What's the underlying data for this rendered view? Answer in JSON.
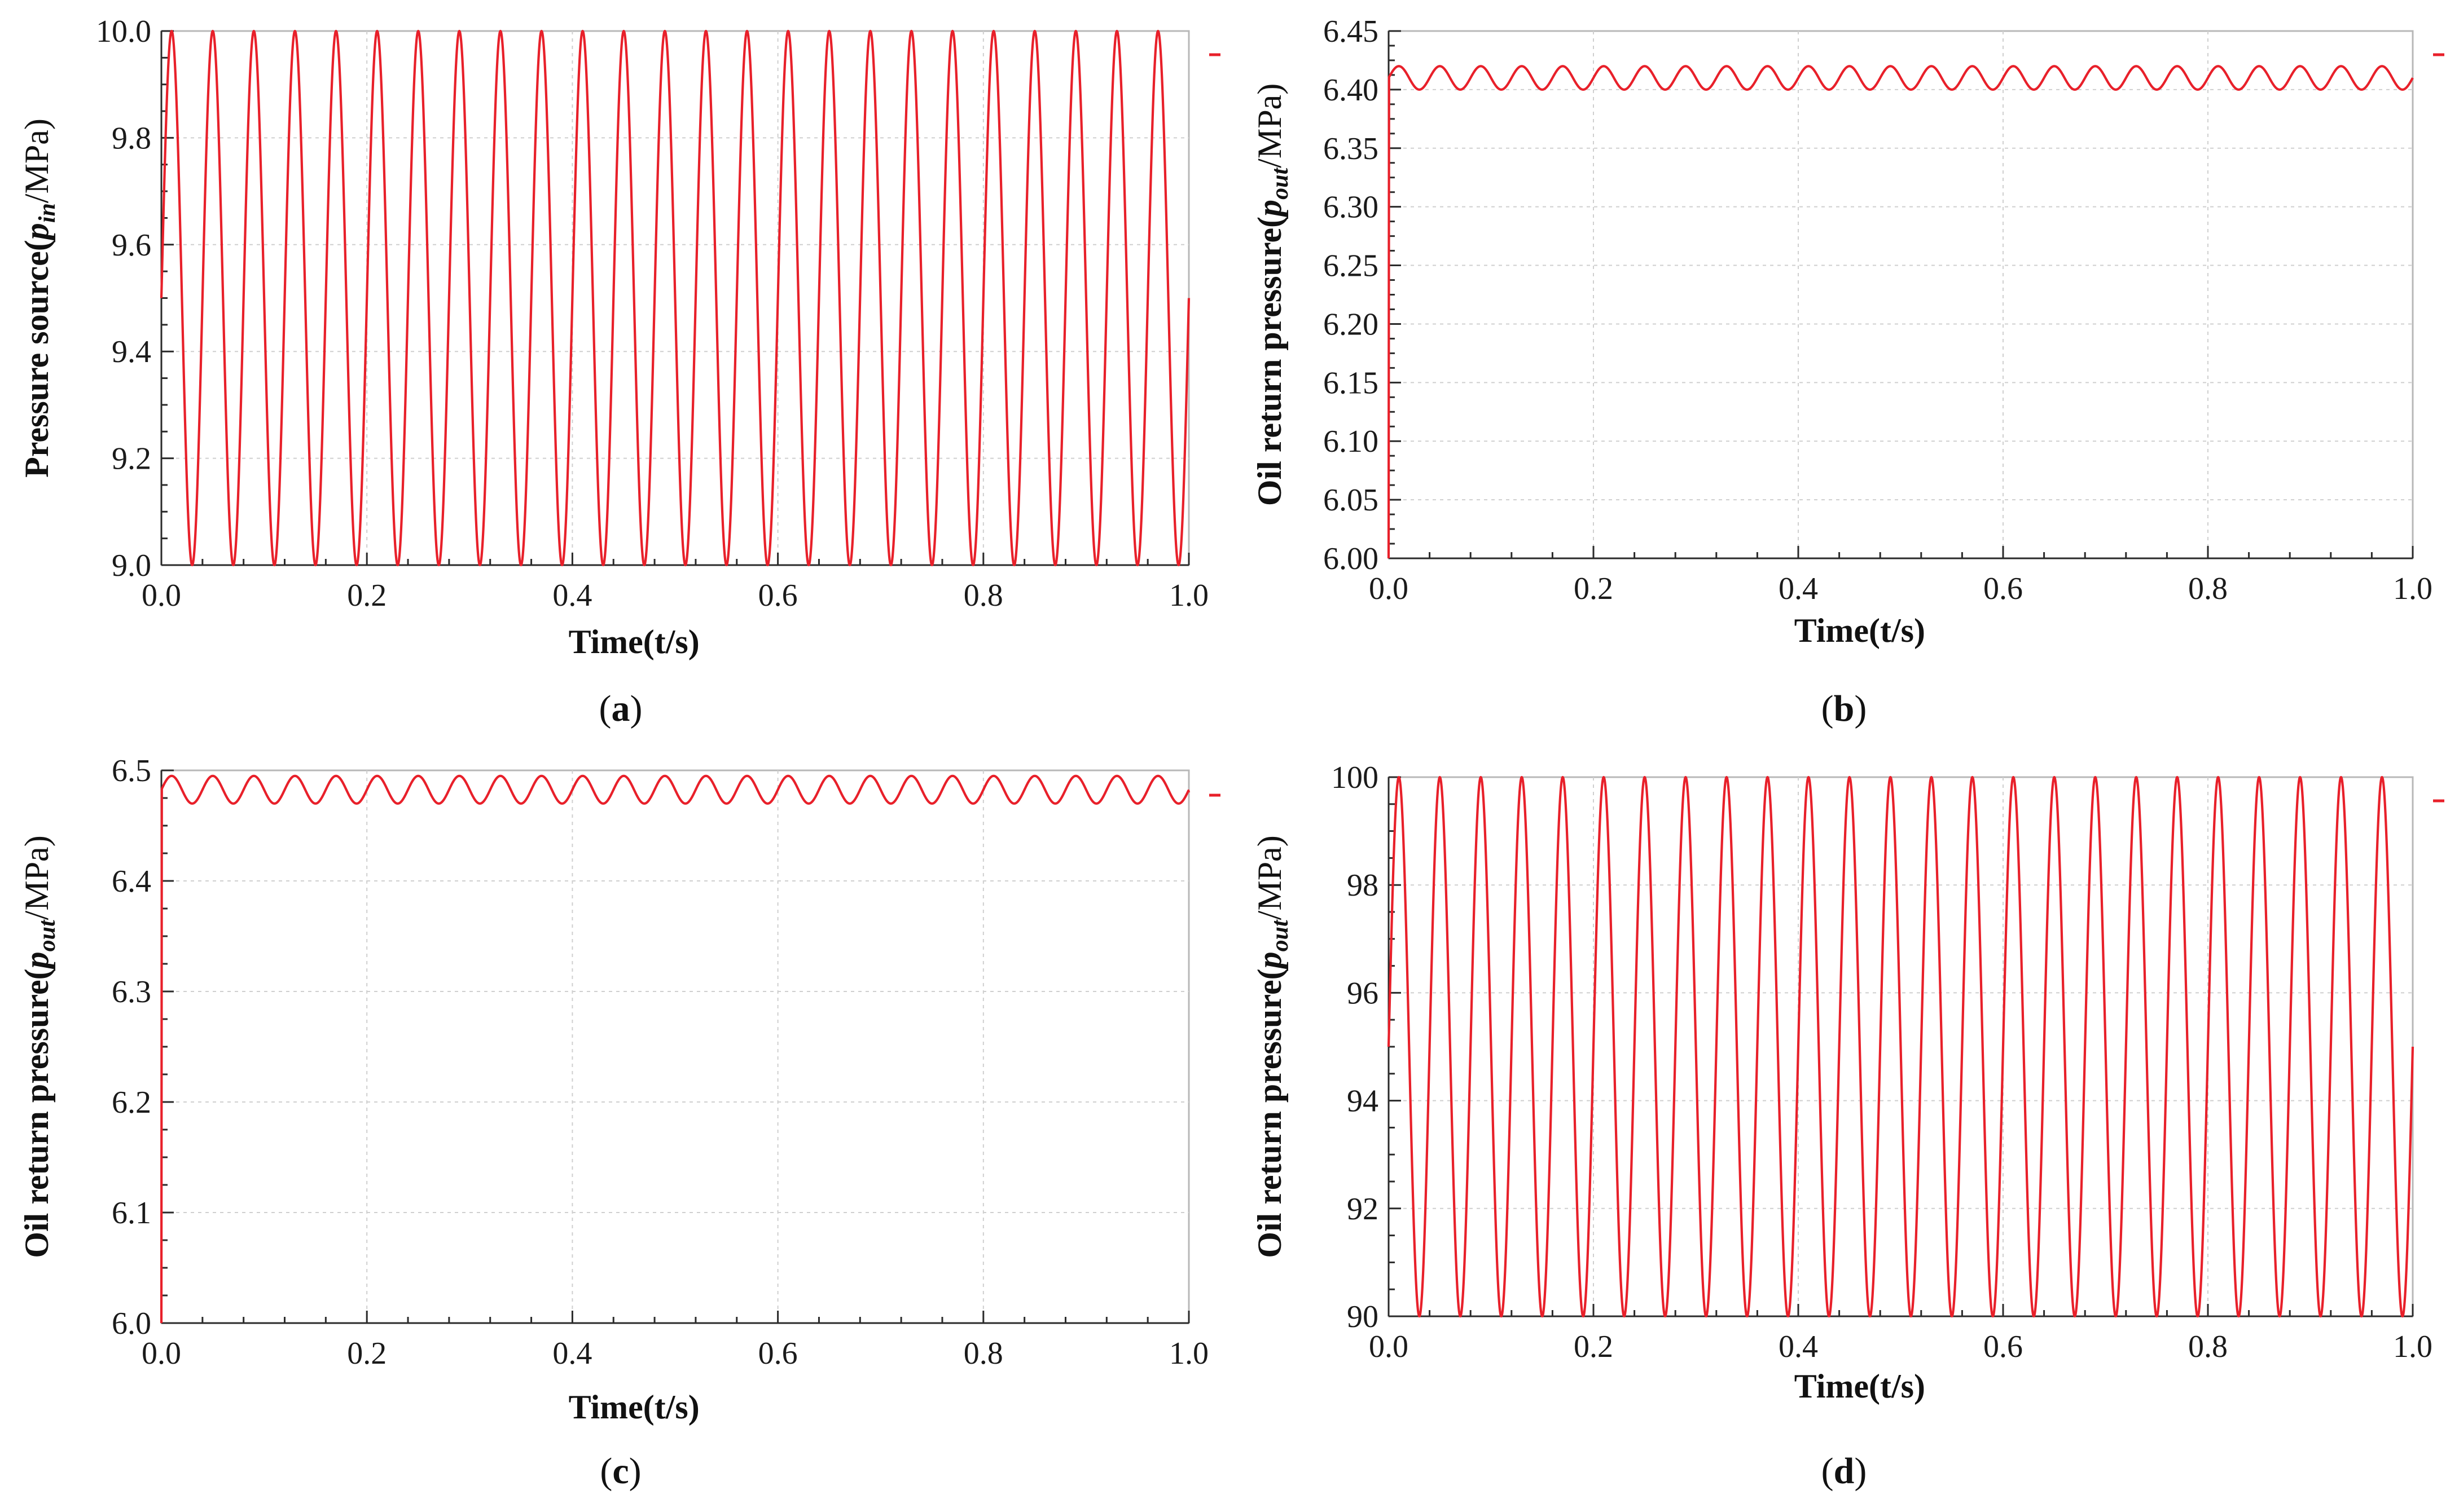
{
  "colors": {
    "series": "#e8202a",
    "axis": "#2a2a2a",
    "grid": "#cfcfcf"
  },
  "chart_data": [
    {
      "id": "a",
      "type": "line",
      "caption": "a",
      "xlabel": "Time(t/s)",
      "ylabel": {
        "prefix": "Pressure source(",
        "var": "p",
        "sub": "in",
        "suffix": "/MPa)"
      },
      "xlim": [
        0.0,
        1.0
      ],
      "ylim": [
        9.0,
        10.0
      ],
      "xticks": [
        "0.0",
        "0.2",
        "0.4",
        "0.6",
        "0.8",
        "1.0"
      ],
      "yticks": [
        "9.0",
        "9.2",
        "9.4",
        "9.6",
        "9.8",
        "10.0"
      ],
      "series": [
        {
          "name": "p_in",
          "kind": "sine",
          "mean": 9.5,
          "amplitude": 0.5,
          "frequency_hz": 25,
          "start_value": 9.5,
          "end_value": 9.5
        }
      ]
    },
    {
      "id": "b",
      "type": "line",
      "caption": "b",
      "xlabel": "Time(t/s)",
      "ylabel": {
        "prefix": "Oil return pressure(",
        "var": "p",
        "sub": "out",
        "suffix": "/MPa)"
      },
      "xlim": [
        0.0,
        1.0
      ],
      "ylim": [
        6.0,
        6.45
      ],
      "xticks": [
        "0.0",
        "0.2",
        "0.4",
        "0.6",
        "0.8",
        "1.0"
      ],
      "yticks": [
        "6.00",
        "6.05",
        "6.10",
        "6.15",
        "6.20",
        "6.25",
        "6.30",
        "6.35",
        "6.40",
        "6.45"
      ],
      "series": [
        {
          "name": "p_out",
          "kind": "sine",
          "mean": 6.41,
          "amplitude": 0.01,
          "frequency_hz": 25,
          "start_value": 6.0,
          "end_value": 6.41
        }
      ]
    },
    {
      "id": "c",
      "type": "line",
      "caption": "c",
      "xlabel": "Time(t/s)",
      "ylabel": {
        "prefix": "Oil return pressure(",
        "var": "p",
        "sub": "out",
        "suffix": "/MPa)"
      },
      "xlim": [
        0.0,
        1.0
      ],
      "ylim": [
        6.0,
        6.5
      ],
      "xticks": [
        "0.0",
        "0.2",
        "0.4",
        "0.6",
        "0.8",
        "1.0"
      ],
      "yticks": [
        "6.0",
        "6.1",
        "6.2",
        "6.3",
        "6.4",
        "6.5"
      ],
      "series": [
        {
          "name": "p_out",
          "kind": "sine",
          "mean": 6.4825,
          "amplitude": 0.0125,
          "frequency_hz": 25,
          "start_value": 6.0,
          "end_value": 6.48
        }
      ]
    },
    {
      "id": "d",
      "type": "line",
      "caption": "d",
      "xlabel": "Time(t/s)",
      "ylabel": {
        "prefix": "Oil return pressure(",
        "var": "p",
        "sub": "out",
        "suffix": "/MPa)"
      },
      "xlim": [
        0.0,
        1.0
      ],
      "ylim": [
        90,
        100
      ],
      "xticks": [
        "0.0",
        "0.2",
        "0.4",
        "0.6",
        "0.8",
        "1.0"
      ],
      "yticks": [
        "90",
        "92",
        "94",
        "96",
        "98",
        "100"
      ],
      "series": [
        {
          "name": "p_out",
          "kind": "sine",
          "mean": 95,
          "amplitude": 5,
          "frequency_hz": 25,
          "start_value": 95,
          "end_value": 95
        }
      ]
    }
  ]
}
